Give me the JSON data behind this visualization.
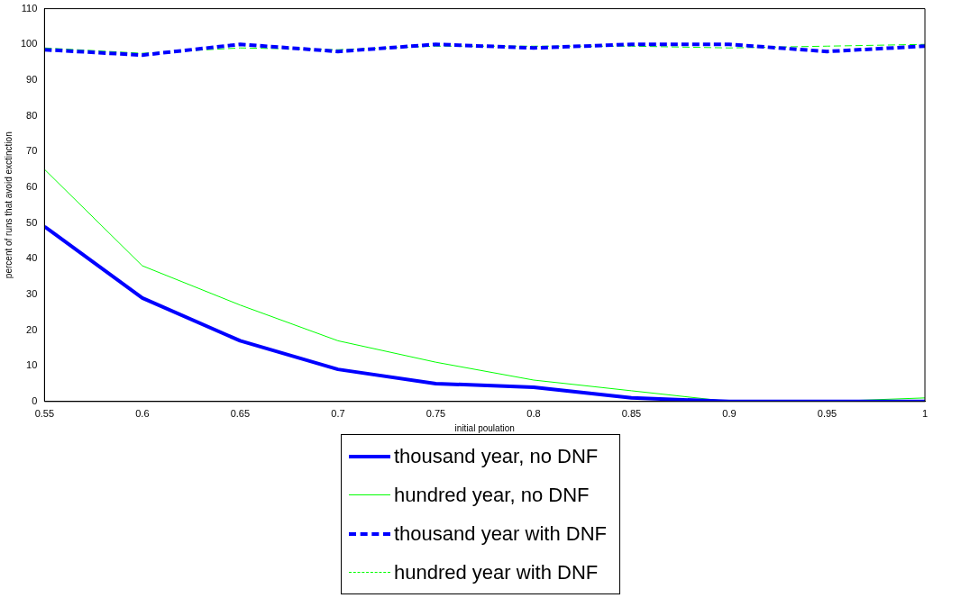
{
  "chart_data": {
    "type": "line",
    "xlabel": "initial poulation",
    "ylabel": "percent of runs that avoid exctinction",
    "x": [
      0.55,
      0.6,
      0.65,
      0.7,
      0.75,
      0.8,
      0.85,
      0.9,
      0.95,
      1
    ],
    "series": [
      {
        "name": "thousand year, no DNF",
        "color": "#0000ff",
        "line_style": "solid",
        "values": [
          49,
          29,
          17,
          9,
          5,
          4,
          1,
          0,
          0,
          0
        ]
      },
      {
        "name": "hundred year, no DNF",
        "color": "#00ff00",
        "line_style": "solid",
        "values": [
          65,
          38,
          27,
          17,
          11,
          6,
          3,
          0,
          0,
          1
        ]
      },
      {
        "name": "thousand year with DNF",
        "color": "#0000ff",
        "line_style": "dashed",
        "values": [
          98.5,
          97,
          100,
          98,
          100,
          99,
          100,
          100,
          98,
          99.5
        ]
      },
      {
        "name": "hundred year with DNF",
        "color": "#00ff00",
        "line_style": "dashed",
        "values": [
          99,
          97.5,
          99,
          98.5,
          99.5,
          99.5,
          99.5,
          99,
          99.5,
          100
        ]
      }
    ],
    "xlim": [
      0.55,
      1
    ],
    "xticks": [
      0.55,
      0.6,
      0.65,
      0.7,
      0.75,
      0.8,
      0.85,
      0.9,
      0.95,
      1
    ],
    "ylim": [
      0,
      110
    ],
    "yticks": [
      0,
      10,
      20,
      30,
      40,
      50,
      60,
      70,
      80,
      90,
      100,
      110
    ],
    "grid": false,
    "legend": "bottom",
    "marker": "none"
  }
}
